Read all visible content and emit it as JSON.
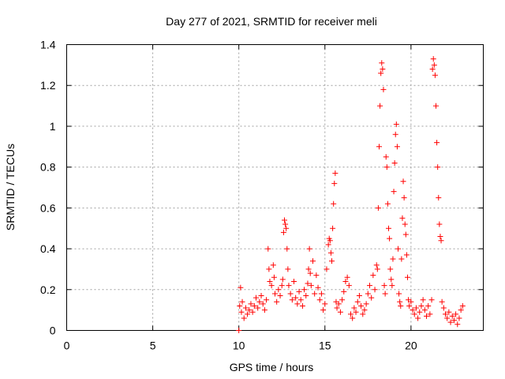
{
  "chart_data": {
    "type": "scatter",
    "title": "Day 277 of 2021, SRMTID for receiver meli",
    "xlabel": "GPS time / hours",
    "ylabel": "SRMTID / TECUs",
    "xlim": [
      0,
      24.2
    ],
    "ylim": [
      0,
      1.4
    ],
    "xticks": [
      0,
      5,
      10,
      15,
      20
    ],
    "xtick_labels": [
      "0",
      "5",
      "10",
      "15",
      "20"
    ],
    "yticks": [
      0,
      0.2,
      0.4,
      0.6,
      0.8,
      1.0,
      1.2,
      1.4
    ],
    "ytick_labels": [
      "0",
      "0.2",
      "0.4",
      "0.6",
      "0.8",
      "1",
      "1.2",
      "1.4"
    ],
    "grid": true,
    "marker": "+",
    "color": "#ff0000",
    "series": [
      {
        "name": "SRMTID",
        "points": [
          [
            10.0,
            0.0
          ],
          [
            10.05,
            0.12
          ],
          [
            10.1,
            0.21
          ],
          [
            10.15,
            0.09
          ],
          [
            10.2,
            0.14
          ],
          [
            10.3,
            0.06
          ],
          [
            10.4,
            0.11
          ],
          [
            10.5,
            0.08
          ],
          [
            10.6,
            0.1
          ],
          [
            10.7,
            0.13
          ],
          [
            10.8,
            0.09
          ],
          [
            10.9,
            0.12
          ],
          [
            11.0,
            0.16
          ],
          [
            11.1,
            0.11
          ],
          [
            11.2,
            0.14
          ],
          [
            11.3,
            0.17
          ],
          [
            11.4,
            0.13
          ],
          [
            11.5,
            0.1
          ],
          [
            11.6,
            0.15
          ],
          [
            11.7,
            0.4
          ],
          [
            11.75,
            0.3
          ],
          [
            11.8,
            0.24
          ],
          [
            11.9,
            0.22
          ],
          [
            12.0,
            0.32
          ],
          [
            12.05,
            0.26
          ],
          [
            12.1,
            0.18
          ],
          [
            12.2,
            0.14
          ],
          [
            12.3,
            0.2
          ],
          [
            12.4,
            0.17
          ],
          [
            12.5,
            0.22
          ],
          [
            12.55,
            0.25
          ],
          [
            12.6,
            0.48
          ],
          [
            12.65,
            0.54
          ],
          [
            12.7,
            0.52
          ],
          [
            12.75,
            0.5
          ],
          [
            12.8,
            0.4
          ],
          [
            12.85,
            0.3
          ],
          [
            12.9,
            0.22
          ],
          [
            13.0,
            0.18
          ],
          [
            13.1,
            0.15
          ],
          [
            13.2,
            0.24
          ],
          [
            13.3,
            0.16
          ],
          [
            13.4,
            0.13
          ],
          [
            13.5,
            0.19
          ],
          [
            13.6,
            0.15
          ],
          [
            13.7,
            0.12
          ],
          [
            13.8,
            0.2
          ],
          [
            13.9,
            0.17
          ],
          [
            14.0,
            0.23
          ],
          [
            14.05,
            0.3
          ],
          [
            14.1,
            0.4
          ],
          [
            14.15,
            0.28
          ],
          [
            14.2,
            0.22
          ],
          [
            14.3,
            0.34
          ],
          [
            14.4,
            0.18
          ],
          [
            14.5,
            0.27
          ],
          [
            14.6,
            0.21
          ],
          [
            14.7,
            0.15
          ],
          [
            14.8,
            0.18
          ],
          [
            14.9,
            0.1
          ],
          [
            15.0,
            0.13
          ],
          [
            15.1,
            0.3
          ],
          [
            15.2,
            0.42
          ],
          [
            15.25,
            0.45
          ],
          [
            15.3,
            0.44
          ],
          [
            15.35,
            0.38
          ],
          [
            15.4,
            0.34
          ],
          [
            15.45,
            0.5
          ],
          [
            15.5,
            0.62
          ],
          [
            15.55,
            0.72
          ],
          [
            15.6,
            0.77
          ],
          [
            15.65,
            0.14
          ],
          [
            15.7,
            0.11
          ],
          [
            15.8,
            0.13
          ],
          [
            15.9,
            0.09
          ],
          [
            16.0,
            0.15
          ],
          [
            16.1,
            0.19
          ],
          [
            16.2,
            0.24
          ],
          [
            16.3,
            0.26
          ],
          [
            16.4,
            0.22
          ],
          [
            16.5,
            0.08
          ],
          [
            16.6,
            0.06
          ],
          [
            16.7,
            0.11
          ],
          [
            16.8,
            0.09
          ],
          [
            16.9,
            0.14
          ],
          [
            17.0,
            0.17
          ],
          [
            17.1,
            0.12
          ],
          [
            17.2,
            0.08
          ],
          [
            17.3,
            0.1
          ],
          [
            17.4,
            0.13
          ],
          [
            17.5,
            0.18
          ],
          [
            17.6,
            0.22
          ],
          [
            17.7,
            0.16
          ],
          [
            17.8,
            0.27
          ],
          [
            17.9,
            0.2
          ],
          [
            18.0,
            0.32
          ],
          [
            18.05,
            0.3
          ],
          [
            18.1,
            0.6
          ],
          [
            18.15,
            0.9
          ],
          [
            18.2,
            1.1
          ],
          [
            18.25,
            1.26
          ],
          [
            18.3,
            1.31
          ],
          [
            18.35,
            1.28
          ],
          [
            18.4,
            1.18
          ],
          [
            18.45,
            0.22
          ],
          [
            18.5,
            0.18
          ],
          [
            18.55,
            0.85
          ],
          [
            18.6,
            0.8
          ],
          [
            18.65,
            0.62
          ],
          [
            18.7,
            0.5
          ],
          [
            18.75,
            0.45
          ],
          [
            18.8,
            0.3
          ],
          [
            18.85,
            0.25
          ],
          [
            18.9,
            0.22
          ],
          [
            18.95,
            0.35
          ],
          [
            19.0,
            0.68
          ],
          [
            19.05,
            0.82
          ],
          [
            19.1,
            0.96
          ],
          [
            19.15,
            1.01
          ],
          [
            19.2,
            0.9
          ],
          [
            19.25,
            0.4
          ],
          [
            19.3,
            0.18
          ],
          [
            19.35,
            0.14
          ],
          [
            19.4,
            0.12
          ],
          [
            19.45,
            0.35
          ],
          [
            19.5,
            0.55
          ],
          [
            19.55,
            0.73
          ],
          [
            19.6,
            0.65
          ],
          [
            19.65,
            0.52
          ],
          [
            19.7,
            0.47
          ],
          [
            19.75,
            0.37
          ],
          [
            19.8,
            0.26
          ],
          [
            19.85,
            0.15
          ],
          [
            19.9,
            0.12
          ],
          [
            20.0,
            0.14
          ],
          [
            20.1,
            0.1
          ],
          [
            20.2,
            0.08
          ],
          [
            20.3,
            0.11
          ],
          [
            20.4,
            0.06
          ],
          [
            20.5,
            0.09
          ],
          [
            20.6,
            0.12
          ],
          [
            20.7,
            0.15
          ],
          [
            20.8,
            0.1
          ],
          [
            20.9,
            0.07
          ],
          [
            21.0,
            0.12
          ],
          [
            21.1,
            0.08
          ],
          [
            21.2,
            0.15
          ],
          [
            21.25,
            1.28
          ],
          [
            21.3,
            1.33
          ],
          [
            21.35,
            1.3
          ],
          [
            21.4,
            1.25
          ],
          [
            21.45,
            1.1
          ],
          [
            21.5,
            0.92
          ],
          [
            21.55,
            0.8
          ],
          [
            21.6,
            0.65
          ],
          [
            21.65,
            0.52
          ],
          [
            21.7,
            0.46
          ],
          [
            21.75,
            0.44
          ],
          [
            21.8,
            0.14
          ],
          [
            21.9,
            0.11
          ],
          [
            22.0,
            0.08
          ],
          [
            22.1,
            0.06
          ],
          [
            22.2,
            0.09
          ],
          [
            22.3,
            0.04
          ],
          [
            22.4,
            0.07
          ],
          [
            22.5,
            0.05
          ],
          [
            22.6,
            0.08
          ],
          [
            22.7,
            0.03
          ],
          [
            22.8,
            0.06
          ],
          [
            22.9,
            0.1
          ],
          [
            23.0,
            0.12
          ]
        ]
      }
    ]
  }
}
